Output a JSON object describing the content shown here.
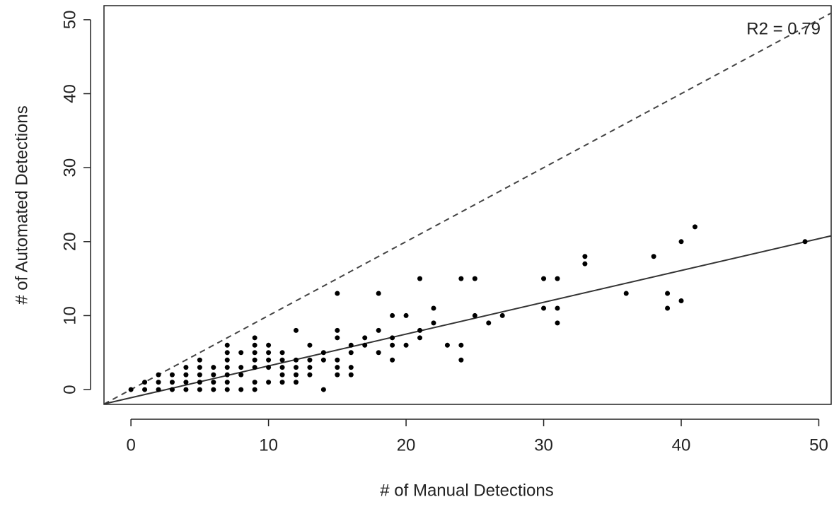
{
  "chart_data": {
    "type": "scatter",
    "x_label": "# of Manual Detections",
    "y_label": "# of Automated Detections",
    "annotation": "R2 = 0.79",
    "color": "#000000",
    "xlim": [
      -1.96,
      50.9
    ],
    "ylim": [
      -2.0,
      51.9
    ],
    "xticks": [
      0,
      10,
      20,
      30,
      40,
      50
    ],
    "yticks": [
      0,
      10,
      20,
      30,
      40,
      50
    ],
    "lines": [
      {
        "slope": 1,
        "intercept": 0,
        "style": "dashed",
        "color": "#444444"
      },
      {
        "slope": 0.43,
        "intercept": -1.1,
        "style": "solid",
        "color": "#333333"
      }
    ],
    "x": [
      0,
      1,
      1,
      2,
      2,
      2,
      3,
      3,
      3,
      4,
      4,
      4,
      4,
      5,
      5,
      5,
      5,
      5,
      6,
      6,
      6,
      6,
      7,
      7,
      7,
      7,
      7,
      7,
      7,
      8,
      8,
      8,
      8,
      9,
      9,
      9,
      9,
      9,
      9,
      9,
      10,
      10,
      10,
      10,
      10,
      11,
      11,
      11,
      11,
      11,
      12,
      12,
      12,
      12,
      12,
      13,
      13,
      13,
      13,
      14,
      14,
      14,
      15,
      15,
      15,
      15,
      15,
      15,
      16,
      16,
      16,
      16,
      17,
      17,
      18,
      18,
      18,
      19,
      19,
      19,
      19,
      20,
      20,
      21,
      21,
      21,
      22,
      22,
      23,
      24,
      24,
      24,
      25,
      25,
      26,
      27,
      30,
      30,
      31,
      31,
      31,
      33,
      33,
      36,
      38,
      39,
      39,
      40,
      40,
      41,
      49
    ],
    "values": [
      0,
      0,
      1,
      0,
      1,
      2,
      0,
      1,
      2,
      0,
      1,
      2,
      3,
      0,
      1,
      2,
      3,
      4,
      0,
      1,
      2,
      3,
      0,
      1,
      2,
      3,
      4,
      5,
      6,
      0,
      2,
      3,
      5,
      0,
      1,
      3,
      4,
      5,
      6,
      7,
      1,
      3,
      4,
      5,
      6,
      1,
      2,
      3,
      4,
      5,
      1,
      2,
      3,
      4,
      8,
      2,
      3,
      4,
      6,
      0,
      4,
      5,
      2,
      3,
      4,
      7,
      8,
      13,
      2,
      3,
      5,
      6,
      6,
      7,
      5,
      8,
      13,
      4,
      6,
      7,
      10,
      6,
      10,
      7,
      8,
      15,
      9,
      11,
      6,
      4,
      6,
      15,
      10,
      15,
      9,
      10,
      11,
      15,
      9,
      11,
      15,
      17,
      18,
      13,
      18,
      11,
      13,
      12,
      20,
      22,
      20
    ]
  }
}
